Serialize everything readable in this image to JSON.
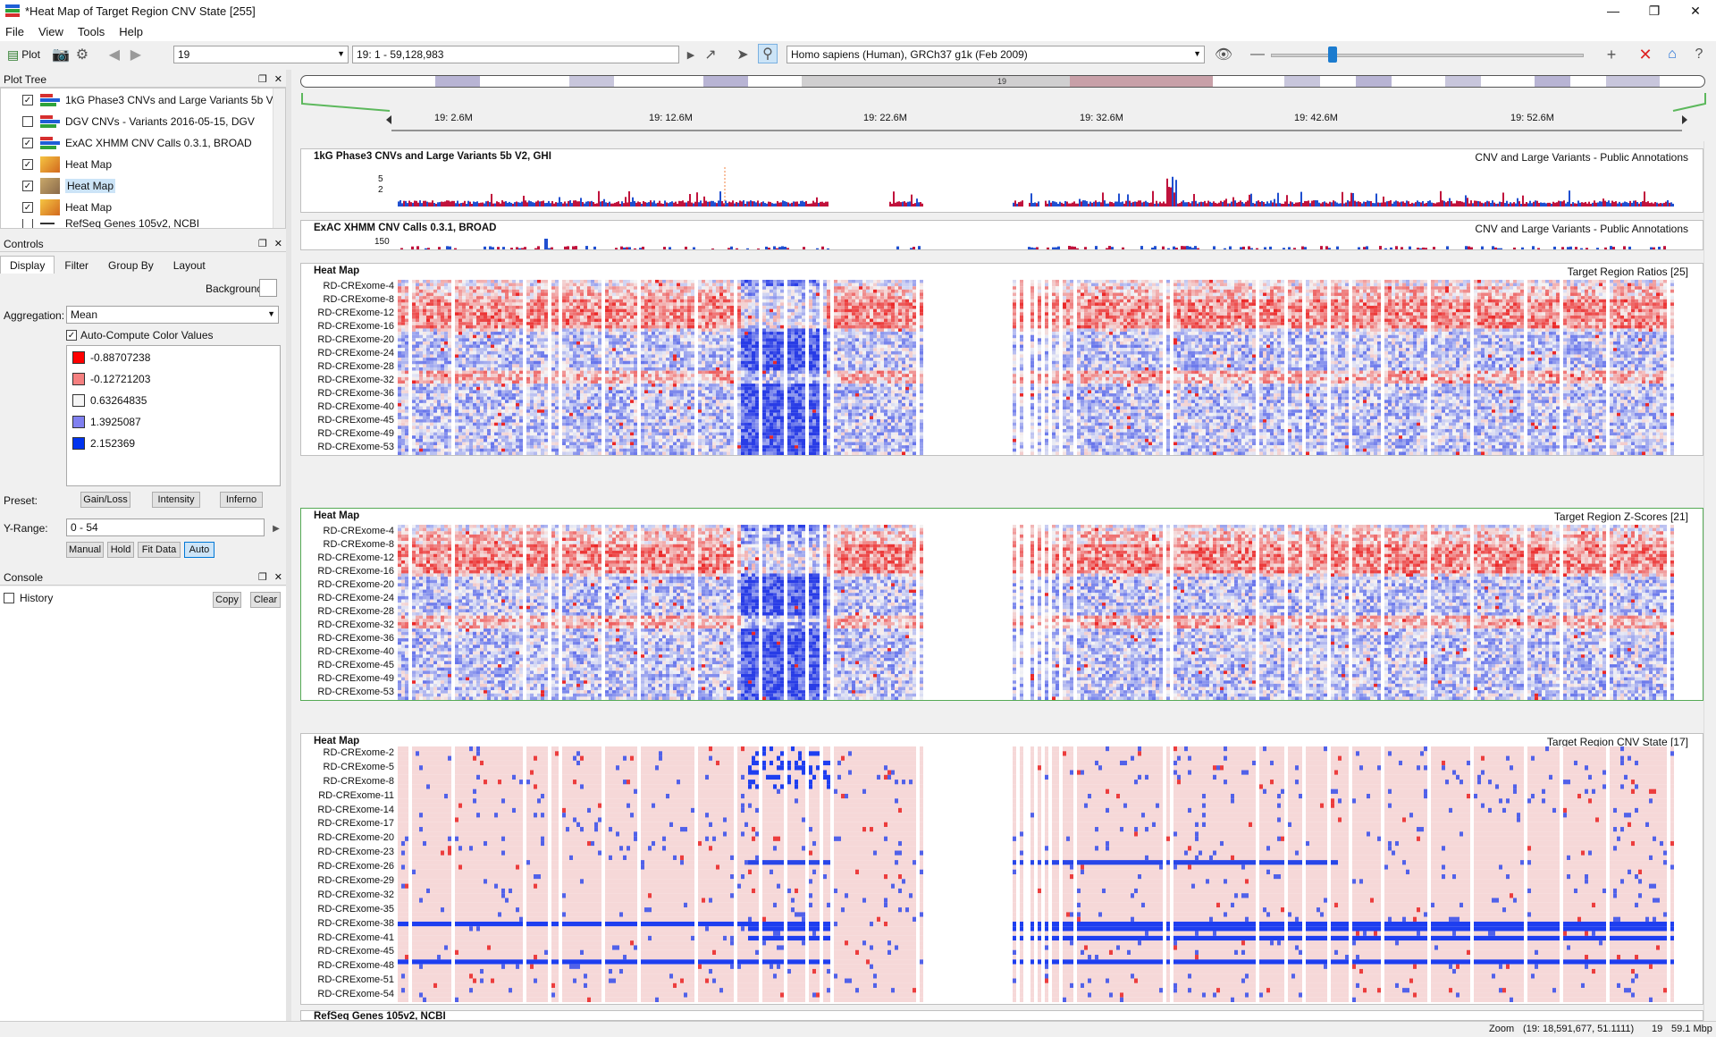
{
  "window": {
    "title": "*Heat Map of Target Region CNV State [255]"
  },
  "menu": [
    "File",
    "View",
    "Tools",
    "Help"
  ],
  "toolbar": {
    "plot_label": "Plot",
    "chromosome": "19",
    "position": "19: 1 - 59,128,983",
    "genome": "Homo sapiens (Human), GRCh37 g1k (Feb 2009)",
    "ideogram_label": "19"
  },
  "plot_tree": {
    "title": "Plot Tree",
    "items": [
      {
        "label": "1kG Phase3 CNVs and Large Variants 5b V...",
        "checked": true,
        "icon": "bar-track-icon"
      },
      {
        "label": "DGV CNVs - Variants 2016-05-15, DGV",
        "checked": false,
        "icon": "bar-track-icon"
      },
      {
        "label": "ExAC XHMM CNV Calls 0.3.1, BROAD",
        "checked": true,
        "icon": "bar-track-icon"
      },
      {
        "label": "Heat Map",
        "checked": true,
        "icon": "heatmap-icon"
      },
      {
        "label": "Heat Map",
        "checked": true,
        "icon": "heatmap-icon",
        "selected": true
      },
      {
        "label": "Heat Map",
        "checked": true,
        "icon": "heatmap-icon"
      },
      {
        "label": "RefSeq Genes 105v2, NCBI",
        "checked": false,
        "icon": "gene-icon"
      }
    ]
  },
  "controls": {
    "title": "Controls",
    "tabs": [
      "Display",
      "Filter",
      "Group By",
      "Layout"
    ],
    "background_label": "Background",
    "aggregation_label": "Aggregation:",
    "aggregation_value": "Mean",
    "auto_compute_label": "Auto-Compute Color Values",
    "color_stops": [
      {
        "value": "-0.88707238",
        "color": "#ff0000"
      },
      {
        "value": "-0.12721203",
        "color": "#f58080"
      },
      {
        "value": "0.63264835",
        "color": "#f5f5f5"
      },
      {
        "value": "1.3925087",
        "color": "#8080f0"
      },
      {
        "value": "2.152369",
        "color": "#0033ee"
      }
    ],
    "preset_label": "Preset:",
    "presets": [
      "Gain/Loss",
      "Intensity",
      "Inferno"
    ],
    "yrange_label": "Y-Range:",
    "yrange_value": "0 - 54",
    "yrange_buttons": [
      "Manual",
      "Hold",
      "Fit Data",
      "Auto"
    ]
  },
  "console": {
    "title": "Console",
    "history_label": "History",
    "copy_label": "Copy",
    "clear_label": "Clear"
  },
  "ruler": {
    "ticks": [
      "19: 2.6M",
      "19: 12.6M",
      "19: 22.6M",
      "19: 32.6M",
      "19: 42.6M",
      "19: 52.6M"
    ]
  },
  "tracks": {
    "kg": {
      "title": "1kG Phase3 CNVs and Large Variants 5b V2, GHI",
      "right": "CNV and Large Variants - Public Annotations",
      "y_ticks": [
        "5",
        "2"
      ]
    },
    "exac": {
      "title": "ExAC XHMM CNV Calls 0.3.1, BROAD",
      "right": "CNV and Large Variants - Public Annotations",
      "y_ticks": [
        "150"
      ]
    },
    "hm1": {
      "title": "Heat Map",
      "right": "Target Region Ratios [25]",
      "rows": [
        "RD-CRExome-4",
        "RD-CRExome-8",
        "RD-CRExome-12",
        "RD-CRExome-16",
        "RD-CRExome-20",
        "RD-CRExome-24",
        "RD-CRExome-28",
        "RD-CRExome-32",
        "RD-CRExome-36",
        "RD-CRExome-40",
        "RD-CRExome-45",
        "RD-CRExome-49",
        "RD-CRExome-53"
      ]
    },
    "hm2": {
      "title": "Heat Map",
      "right": "Target Region Z-Scores [21]",
      "rows": [
        "RD-CRExome-4",
        "RD-CRExome-8",
        "RD-CRExome-12",
        "RD-CRExome-16",
        "RD-CRExome-20",
        "RD-CRExome-24",
        "RD-CRExome-28",
        "RD-CRExome-32",
        "RD-CRExome-36",
        "RD-CRExome-40",
        "RD-CRExome-45",
        "RD-CRExome-49",
        "RD-CRExome-53"
      ]
    },
    "hm3": {
      "title": "Heat Map",
      "right": "Target Region CNV State [17]",
      "rows": [
        "RD-CRExome-2",
        "RD-CRExome-5",
        "RD-CRExome-8",
        "RD-CRExome-11",
        "RD-CRExome-14",
        "RD-CRExome-17",
        "RD-CRExome-20",
        "RD-CRExome-23",
        "RD-CRExome-26",
        "RD-CRExome-29",
        "RD-CRExome-32",
        "RD-CRExome-35",
        "RD-CRExome-38",
        "RD-CRExome-41",
        "RD-CRExome-45",
        "RD-CRExome-48",
        "RD-CRExome-51",
        "RD-CRExome-54"
      ]
    },
    "refseq": {
      "title": "RefSeq Genes 105v2, NCBI"
    }
  },
  "status": {
    "zoom_label": "Zoom",
    "coords": "(19: 18,591,677, 51.1111)",
    "chrom": "19",
    "span": "59.1 Mbp"
  }
}
